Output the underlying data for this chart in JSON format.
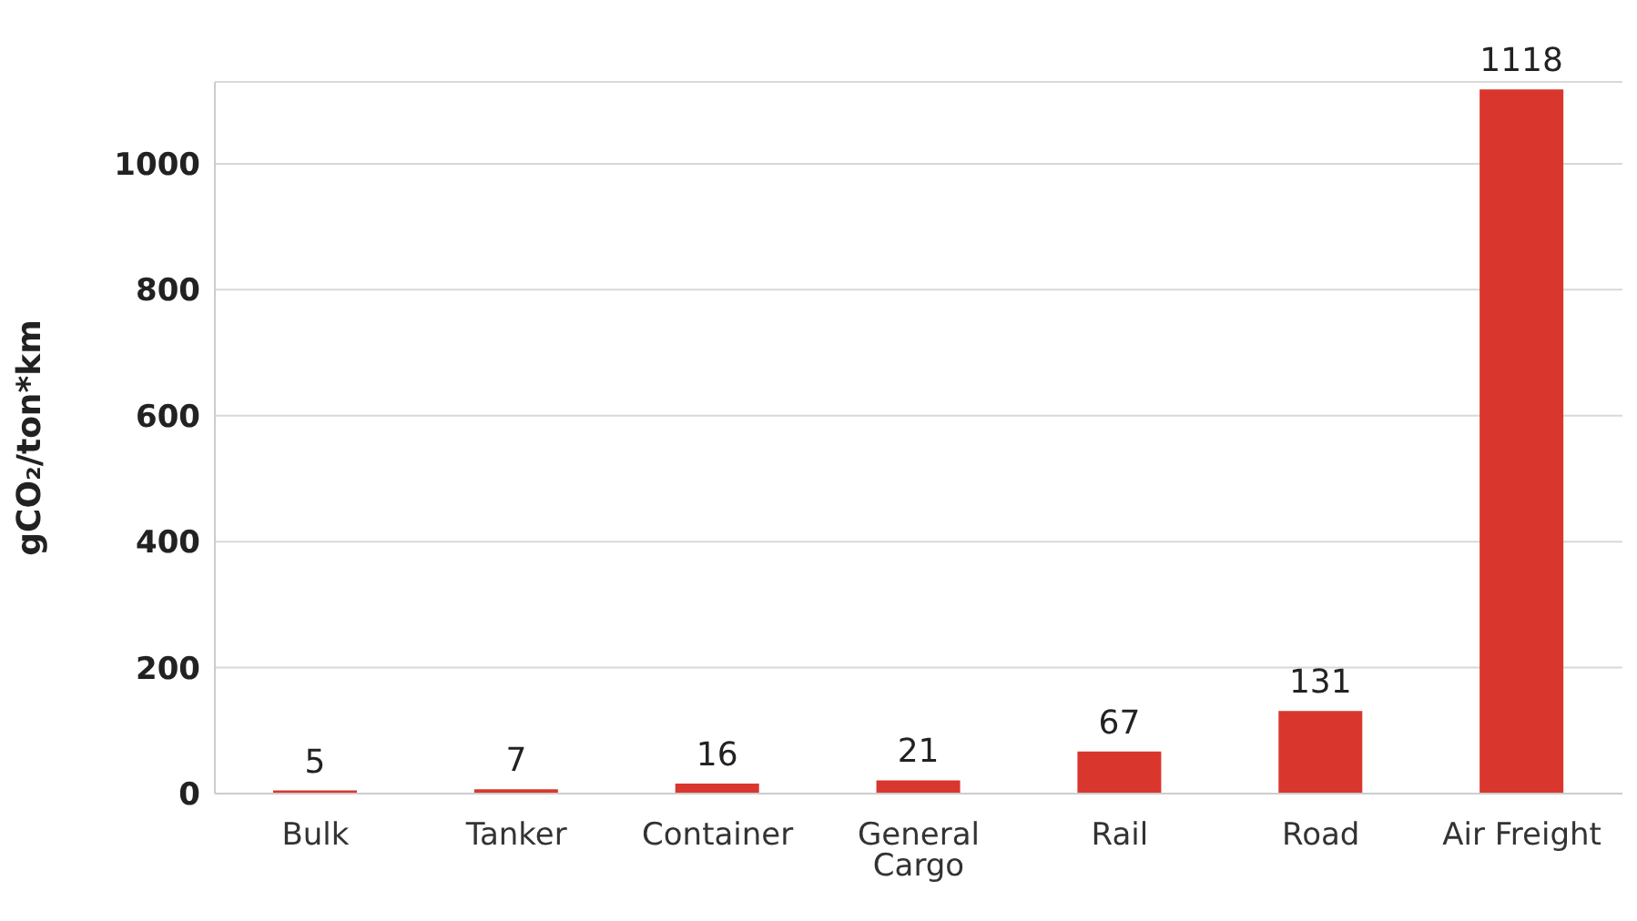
{
  "chart_data": {
    "type": "bar",
    "ylabel": "gCO₂/ton*km",
    "categories": [
      "Bulk",
      "Tanker",
      "Container",
      "General Cargo",
      "Rail",
      "Road",
      "Air Freight"
    ],
    "values": [
      5,
      7,
      16,
      21,
      67,
      131,
      1118
    ],
    "color": "#d9372e",
    "ylim": [
      0,
      1130
    ],
    "yticks": [
      0,
      200,
      400,
      600,
      800,
      1000
    ],
    "grid": "y",
    "data_labels": true
  }
}
